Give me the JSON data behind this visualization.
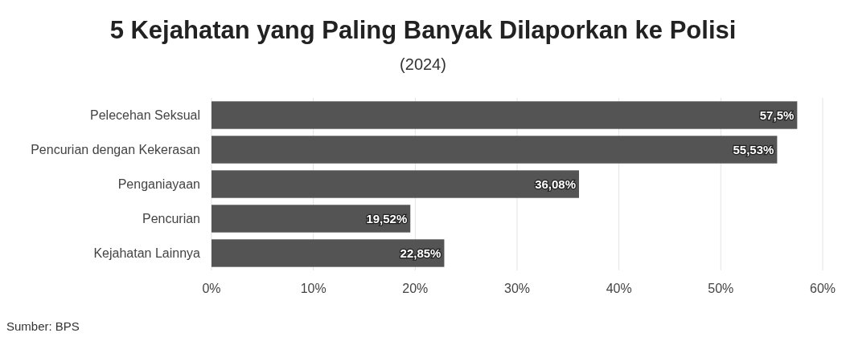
{
  "chart_data": {
    "type": "bar",
    "orientation": "horizontal",
    "title": "5 Kejahatan yang Paling Banyak Dilaporkan ke Polisi",
    "subtitle": "(2024)",
    "categories": [
      "Pelecehan Seksual",
      "Pencurian dengan Kekerasan",
      "Penganiayaan",
      "Pencurian",
      "Kejahatan Lainnya"
    ],
    "values": [
      57.5,
      55.53,
      36.08,
      19.52,
      22.85
    ],
    "value_labels": [
      "57,5%",
      "55,53%",
      "36,08%",
      "19,52%",
      "22,85%"
    ],
    "color": "#545454",
    "xlim": [
      0,
      60
    ],
    "xticks": [
      {
        "value": 0,
        "label": "0%"
      },
      {
        "value": 10,
        "label": "10%"
      },
      {
        "value": 20,
        "label": "20%"
      },
      {
        "value": 30,
        "label": "30%"
      },
      {
        "value": 40,
        "label": "40%"
      },
      {
        "value": 50,
        "label": "50%"
      },
      {
        "value": 60,
        "label": "60%"
      }
    ],
    "grid": "x",
    "annotations": [
      "Sumber: BPS"
    ]
  }
}
